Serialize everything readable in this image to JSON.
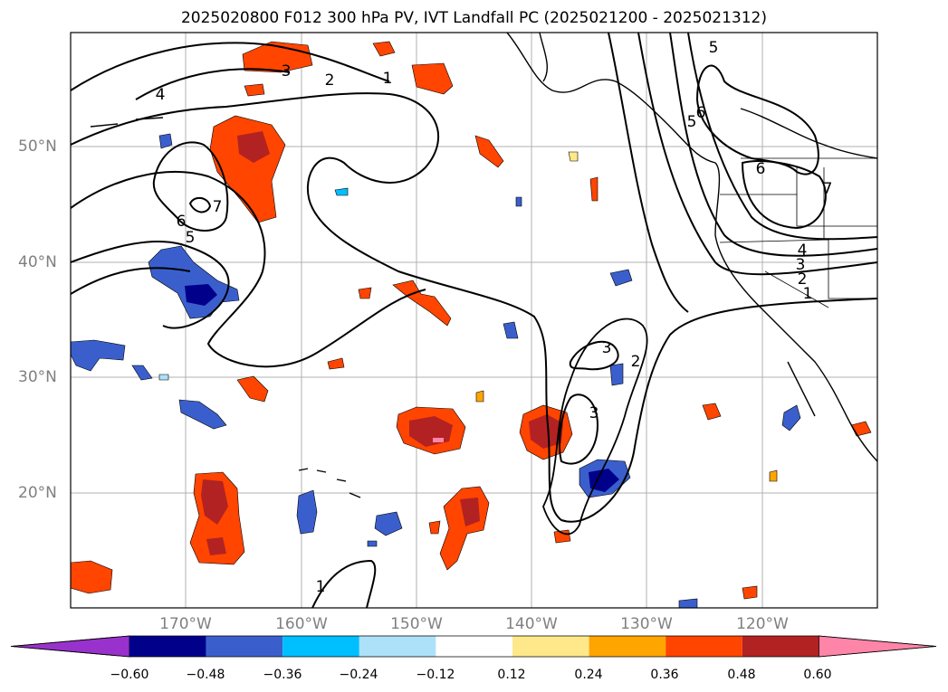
{
  "title": "2025020800 F012 300 hPa PV, IVT Landfall PC (2025021200 - 2025021312)",
  "lat_labels": [
    "50°N",
    "40°N",
    "30°N",
    "20°N"
  ],
  "lon_labels": [
    "170°W",
    "160°W",
    "150°W",
    "140°W",
    "130°W",
    "120°W"
  ],
  "contour_labels": [
    "1",
    "2",
    "3",
    "4",
    "5",
    "6",
    "7"
  ],
  "colorbar": {
    "ticks": [
      "−0.60",
      "−0.48",
      "−0.36",
      "−0.24",
      "−0.12",
      "0.12",
      "0.24",
      "0.36",
      "0.48",
      "0.60"
    ],
    "colors": [
      "#9932CC",
      "#00008B",
      "#3A5FCD",
      "#00BFFF",
      "#ADE1FA",
      "#FFFFFF",
      "#FFE88A",
      "#FFA500",
      "#FF4500",
      "#B22222",
      "#FF85A8"
    ]
  }
}
